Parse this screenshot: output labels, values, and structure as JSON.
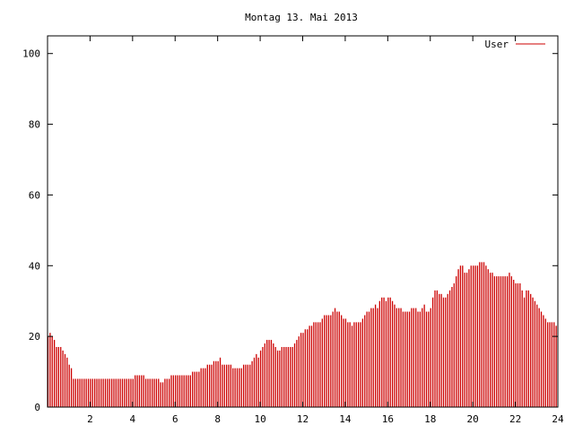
{
  "chart_data": {
    "type": "bar",
    "title": "Montag 13. Mai 2013",
    "xlabel": "",
    "ylabel": "",
    "xlim": [
      0,
      24
    ],
    "ylim": [
      0,
      105
    ],
    "xticks": [
      2,
      4,
      6,
      8,
      10,
      12,
      14,
      16,
      18,
      20,
      22,
      24
    ],
    "yticks": [
      0,
      20,
      40,
      60,
      80,
      100
    ],
    "grid": false,
    "legend_position": "top-right",
    "colors": {
      "series": "#cc0000",
      "axis": "#000000"
    },
    "series": [
      {
        "name": "User",
        "x": [
          0.0,
          0.1,
          0.2,
          0.3,
          0.4,
          0.5,
          0.6,
          0.7,
          0.8,
          0.9,
          1.0,
          1.1,
          1.2,
          1.3,
          1.4,
          1.5,
          1.6,
          1.7,
          1.8,
          1.9,
          2.0,
          2.1,
          2.2,
          2.3,
          2.4,
          2.5,
          2.6,
          2.7,
          2.8,
          2.9,
          3.0,
          3.1,
          3.2,
          3.3,
          3.4,
          3.5,
          3.6,
          3.7,
          3.8,
          3.9,
          4.0,
          4.1,
          4.2,
          4.3,
          4.4,
          4.5,
          4.6,
          4.7,
          4.8,
          4.9,
          5.0,
          5.1,
          5.2,
          5.3,
          5.4,
          5.5,
          5.6,
          5.7,
          5.8,
          5.9,
          6.0,
          6.1,
          6.2,
          6.3,
          6.4,
          6.5,
          6.6,
          6.7,
          6.8,
          6.9,
          7.0,
          7.1,
          7.2,
          7.3,
          7.4,
          7.5,
          7.6,
          7.7,
          7.8,
          7.9,
          8.0,
          8.1,
          8.2,
          8.3,
          8.4,
          8.5,
          8.6,
          8.7,
          8.8,
          8.9,
          9.0,
          9.1,
          9.2,
          9.3,
          9.4,
          9.5,
          9.6,
          9.7,
          9.8,
          9.9,
          10.0,
          10.1,
          10.2,
          10.3,
          10.4,
          10.5,
          10.6,
          10.7,
          10.8,
          10.9,
          11.0,
          11.1,
          11.2,
          11.3,
          11.4,
          11.5,
          11.6,
          11.7,
          11.8,
          11.9,
          12.0,
          12.1,
          12.2,
          12.3,
          12.4,
          12.5,
          12.6,
          12.7,
          12.8,
          12.9,
          13.0,
          13.1,
          13.2,
          13.3,
          13.4,
          13.5,
          13.6,
          13.7,
          13.8,
          13.9,
          14.0,
          14.1,
          14.2,
          14.3,
          14.4,
          14.5,
          14.6,
          14.7,
          14.8,
          14.9,
          15.0,
          15.1,
          15.2,
          15.3,
          15.4,
          15.5,
          15.6,
          15.7,
          15.8,
          15.9,
          16.0,
          16.1,
          16.2,
          16.3,
          16.4,
          16.5,
          16.6,
          16.7,
          16.8,
          16.9,
          17.0,
          17.1,
          17.2,
          17.3,
          17.4,
          17.5,
          17.6,
          17.7,
          17.8,
          17.9,
          18.0,
          18.1,
          18.2,
          18.3,
          18.4,
          18.5,
          18.6,
          18.7,
          18.8,
          18.9,
          19.0,
          19.1,
          19.2,
          19.3,
          19.4,
          19.5,
          19.6,
          19.7,
          19.8,
          19.9,
          20.0,
          20.1,
          20.2,
          20.3,
          20.4,
          20.5,
          20.6,
          20.7,
          20.8,
          20.9,
          21.0,
          21.1,
          21.2,
          21.3,
          21.4,
          21.5,
          21.6,
          21.7,
          21.8,
          21.9,
          22.0,
          22.1,
          22.2,
          22.3,
          22.4,
          22.5,
          22.6,
          22.7,
          22.8,
          22.9,
          23.0,
          23.1,
          23.2,
          23.3,
          23.4,
          23.5,
          23.6,
          23.7,
          23.8,
          23.9
        ],
        "values": [
          20,
          21,
          20,
          19,
          17,
          17,
          17,
          16,
          15,
          14,
          12,
          11,
          8,
          8,
          8,
          8,
          8,
          8,
          8,
          8,
          8,
          8,
          8,
          8,
          8,
          8,
          8,
          8,
          8,
          8,
          8,
          8,
          8,
          8,
          8,
          8,
          8,
          8,
          8,
          8,
          8,
          9,
          9,
          9,
          9,
          9,
          8,
          8,
          8,
          8,
          8,
          8,
          8,
          7,
          7,
          8,
          8,
          8,
          9,
          9,
          9,
          9,
          9,
          9,
          9,
          9,
          9,
          9,
          10,
          10,
          10,
          10,
          11,
          11,
          11,
          12,
          12,
          12,
          13,
          13,
          13,
          14,
          12,
          12,
          12,
          12,
          12,
          11,
          11,
          11,
          11,
          11,
          12,
          12,
          12,
          12,
          13,
          14,
          15,
          14,
          16,
          17,
          18,
          19,
          19,
          19,
          18,
          17,
          16,
          16,
          17,
          17,
          17,
          17,
          17,
          17,
          18,
          19,
          20,
          21,
          21,
          22,
          22,
          23,
          23,
          24,
          24,
          24,
          24,
          25,
          26,
          26,
          26,
          26,
          27,
          28,
          27,
          27,
          26,
          25,
          25,
          24,
          24,
          23,
          24,
          24,
          24,
          24,
          25,
          26,
          27,
          27,
          28,
          28,
          29,
          28,
          30,
          31,
          31,
          30,
          31,
          31,
          30,
          29,
          28,
          28,
          28,
          27,
          27,
          27,
          27,
          28,
          28,
          28,
          27,
          27,
          28,
          29,
          27,
          27,
          28,
          31,
          33,
          33,
          32,
          32,
          31,
          31,
          32,
          33,
          34,
          35,
          37,
          39,
          40,
          40,
          38,
          38,
          39,
          40,
          40,
          40,
          40,
          41,
          41,
          41,
          40,
          39,
          38,
          38,
          37,
          37,
          37,
          37,
          37,
          37,
          37,
          38,
          37,
          36,
          35,
          35,
          35,
          33,
          31,
          33,
          33,
          32,
          31,
          30,
          29,
          28,
          27,
          26,
          25,
          24,
          24,
          24,
          24,
          23
        ]
      }
    ]
  }
}
